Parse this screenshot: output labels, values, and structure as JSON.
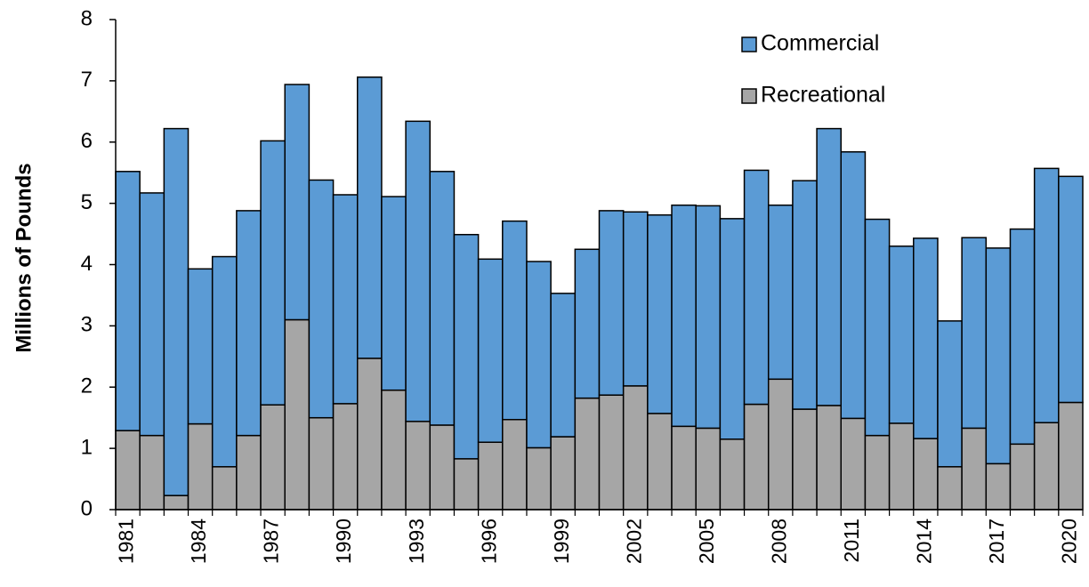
{
  "chart_data": {
    "type": "stacked-bar",
    "y_label": "Millions of Pounds",
    "categories": [
      "1981",
      null,
      null,
      "1984",
      null,
      null,
      "1987",
      null,
      null,
      "1990",
      null,
      null,
      "1993",
      null,
      null,
      "1996",
      null,
      null,
      "1999",
      null,
      null,
      "2002",
      null,
      null,
      "2005",
      null,
      null,
      "2008",
      null,
      null,
      "2011",
      null,
      null,
      "2014",
      null,
      null,
      "2017",
      null,
      null,
      "2020"
    ],
    "series": [
      {
        "name": "Commercial",
        "color": "#5b9bd5",
        "values": [
          4.23,
          3.96,
          5.99,
          2.53,
          3.43,
          3.67,
          4.31,
          3.84,
          3.88,
          3.41,
          4.59,
          3.16,
          4.9,
          4.14,
          3.66,
          2.99,
          3.24,
          3.04,
          2.34,
          2.43,
          3.01,
          2.84,
          3.24,
          3.61,
          3.63,
          3.6,
          3.82,
          2.84,
          3.73,
          4.52,
          4.35,
          3.53,
          2.89,
          3.27,
          2.38,
          3.11,
          3.52,
          3.51,
          4.15,
          3.69
        ]
      },
      {
        "name": "Recreational",
        "color": "#a6a6a6",
        "values": [
          1.29,
          1.21,
          0.23,
          1.4,
          0.7,
          1.21,
          1.71,
          3.1,
          1.5,
          1.73,
          2.47,
          1.95,
          1.44,
          1.38,
          0.83,
          1.1,
          1.47,
          1.01,
          1.19,
          1.82,
          1.87,
          2.02,
          1.57,
          1.36,
          1.33,
          1.15,
          1.72,
          2.13,
          1.64,
          1.7,
          1.49,
          1.21,
          1.41,
          1.16,
          0.7,
          1.33,
          0.75,
          1.07,
          1.42,
          1.75
        ]
      }
    ],
    "ylim": [
      0,
      8
    ],
    "yticks": [
      0,
      1,
      2,
      3,
      4,
      5,
      6,
      7,
      8
    ],
    "grid": false,
    "legend": "top-right"
  }
}
